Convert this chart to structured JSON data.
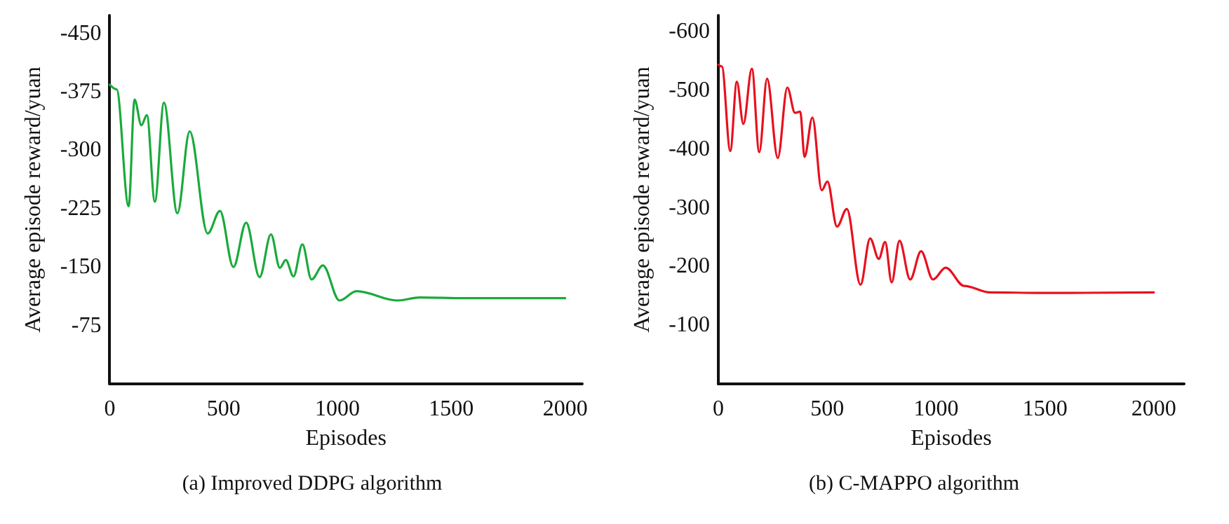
{
  "chart_data": [
    {
      "type": "line",
      "title": "(a) Improved DDPG algorithm",
      "xlabel": "Episodes",
      "ylabel": "Average episode reward/yuan",
      "xlim": [
        0,
        2075
      ],
      "xticks": [
        0,
        500,
        1000,
        1500,
        2000
      ],
      "ylim": [
        0,
        -473
      ],
      "yticks": [
        -450,
        -375,
        -300,
        -225,
        -150,
        -75
      ],
      "grid": false,
      "marker": "none",
      "line_style": "solid",
      "series": [
        {
          "color": "#1aaa3c",
          "x": [
            0,
            30,
            83,
            109,
            139,
            163,
            198,
            238,
            297,
            351,
            430,
            484,
            543,
            599,
            658,
            708,
            747,
            773,
            807,
            846,
            886,
            936,
            1009,
            1084,
            1263,
            1362,
            1560,
            2000
          ],
          "values": [
            -384,
            -378,
            -228,
            -365,
            -332,
            -345,
            -234,
            -361,
            -219,
            -324,
            -193,
            -222,
            -150,
            -207,
            -137,
            -192,
            -149,
            -159,
            -138,
            -179,
            -134,
            -152,
            -107,
            -119,
            -107,
            -111,
            -110,
            -110
          ]
        }
      ]
    },
    {
      "type": "line",
      "title": "(b) C-MAPPO algorithm",
      "xlabel": "Episodes",
      "ylabel": "Average episode reward/yuan",
      "xlim": [
        0,
        2139
      ],
      "xticks": [
        0,
        500,
        1000,
        1500,
        2000
      ],
      "ylim": [
        0,
        -628
      ],
      "yticks": [
        -600,
        -500,
        -400,
        -300,
        -200,
        -100
      ],
      "grid": false,
      "marker": "none",
      "line_style": "solid",
      "series": [
        {
          "color": "#e8101e",
          "x": [
            0,
            16,
            55,
            85,
            115,
            154,
            188,
            224,
            273,
            317,
            352,
            376,
            396,
            432,
            475,
            501,
            545,
            590,
            653,
            697,
            737,
            766,
            796,
            832,
            881,
            931,
            986,
            1044,
            1129,
            1248,
            1485,
            2000
          ],
          "values": [
            -544,
            -541,
            -397,
            -515,
            -443,
            -537,
            -395,
            -520,
            -385,
            -505,
            -462,
            -464,
            -387,
            -454,
            -330,
            -345,
            -268,
            -298,
            -169,
            -248,
            -213,
            -242,
            -173,
            -244,
            -178,
            -226,
            -178,
            -198,
            -167,
            -156,
            -155,
            -156
          ]
        }
      ]
    }
  ]
}
